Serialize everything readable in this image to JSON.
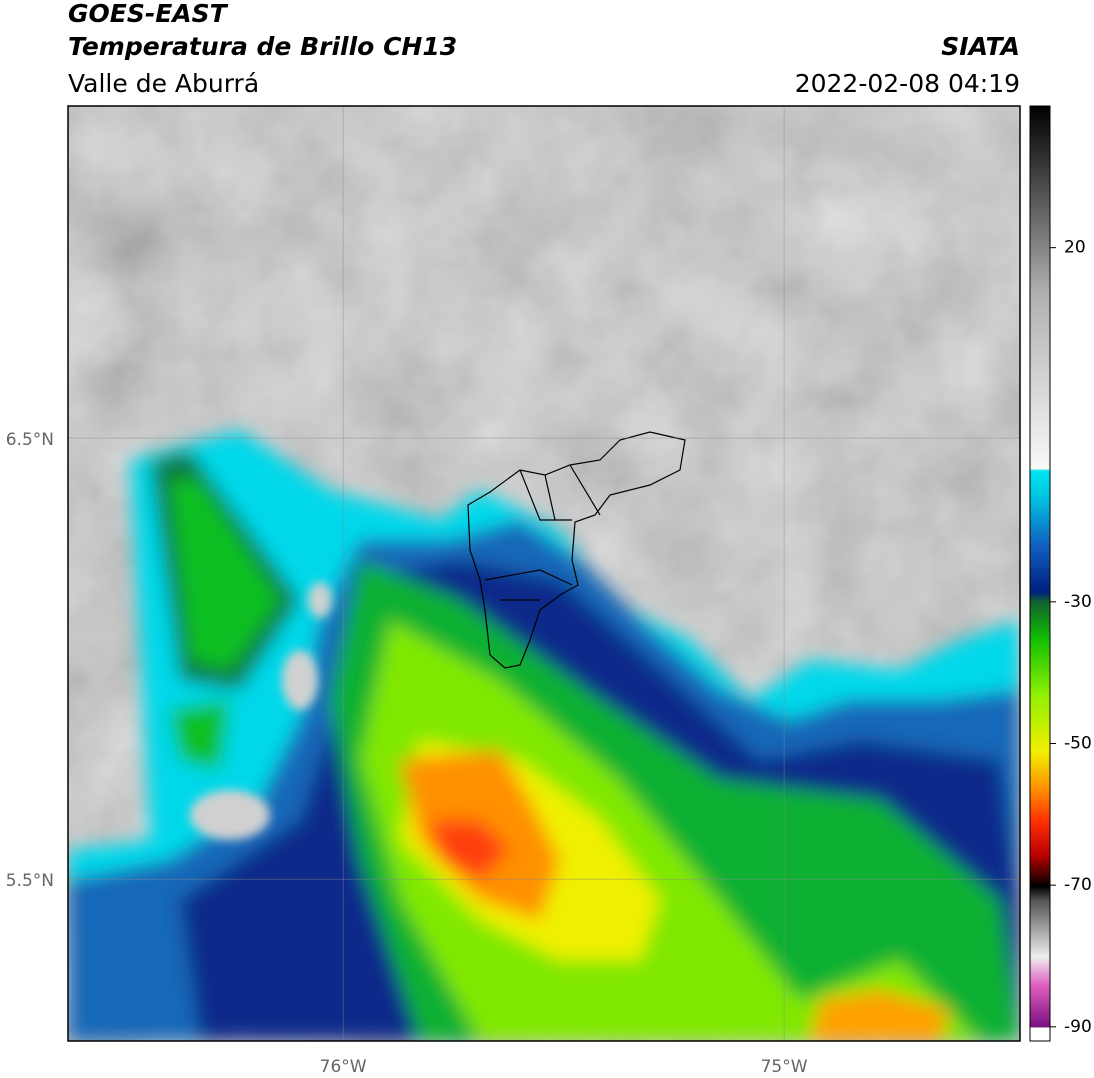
{
  "header": {
    "title": "GOES-EAST",
    "subtitle": "Temperatura de Brillo CH13",
    "region": "Valle de Aburrá",
    "source": "SIATA",
    "datetime": "2022-02-08 04:19"
  },
  "map": {
    "lonlim": [
      -76.624,
      -74.465
    ],
    "latlim": [
      5.133,
      7.253
    ],
    "lonticks": [
      {
        "value": -76,
        "label": "76°W"
      },
      {
        "value": -75,
        "label": "75°W"
      }
    ],
    "latticks": [
      {
        "value": 6.5,
        "label": "6.5°N"
      },
      {
        "value": 5.5,
        "label": "5.5°N"
      }
    ],
    "grid": true
  },
  "colorbar": {
    "lim": [
      -92,
      40
    ],
    "ticks": [
      20,
      -30,
      -50,
      -70,
      -90
    ]
  }
}
